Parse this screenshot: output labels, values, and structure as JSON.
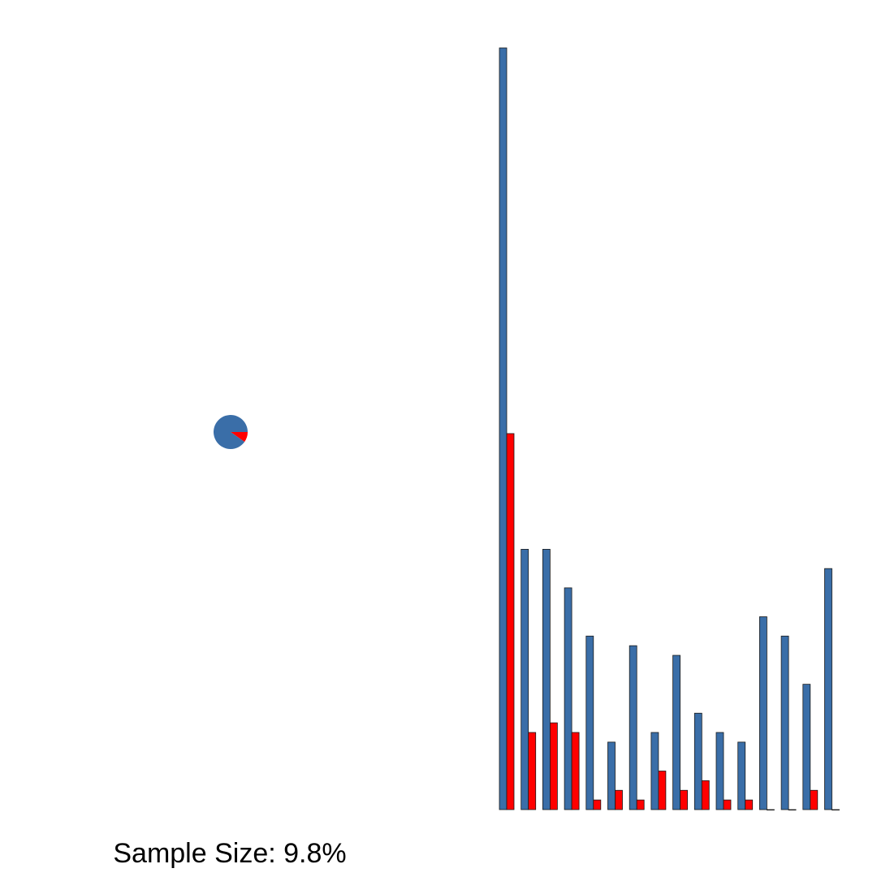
{
  "caption": "Sample Size: 9.8%",
  "colors": {
    "primary": "#3a6ea8",
    "highlight": "#ff0000",
    "outline": "#1a1a1a"
  },
  "chart_data": [
    {
      "type": "pie",
      "title": "",
      "slices": [
        {
          "color": "#3a6ea8",
          "value": 90.2
        },
        {
          "color": "#ff0000",
          "value": 9.8
        }
      ]
    },
    {
      "type": "bar",
      "title": "",
      "xlabel": "",
      "ylabel": "",
      "grid": false,
      "axes_visible": false,
      "ylim": [
        0,
        79
      ],
      "categories": [
        "",
        "",
        "",
        "",
        "",
        "",
        "",
        "",
        "",
        "",
        "",
        "",
        "",
        "",
        "",
        ""
      ],
      "series": [
        {
          "color": "#3a6ea8",
          "values": [
            79,
            27,
            27,
            23,
            18,
            7,
            17,
            8,
            16,
            10,
            8,
            7,
            20,
            18,
            13,
            25
          ]
        },
        {
          "color": "#ff0000",
          "values": [
            39,
            8,
            9,
            8,
            1,
            2,
            1,
            4,
            2,
            3,
            1,
            1,
            0,
            0,
            2,
            0
          ]
        }
      ]
    }
  ]
}
